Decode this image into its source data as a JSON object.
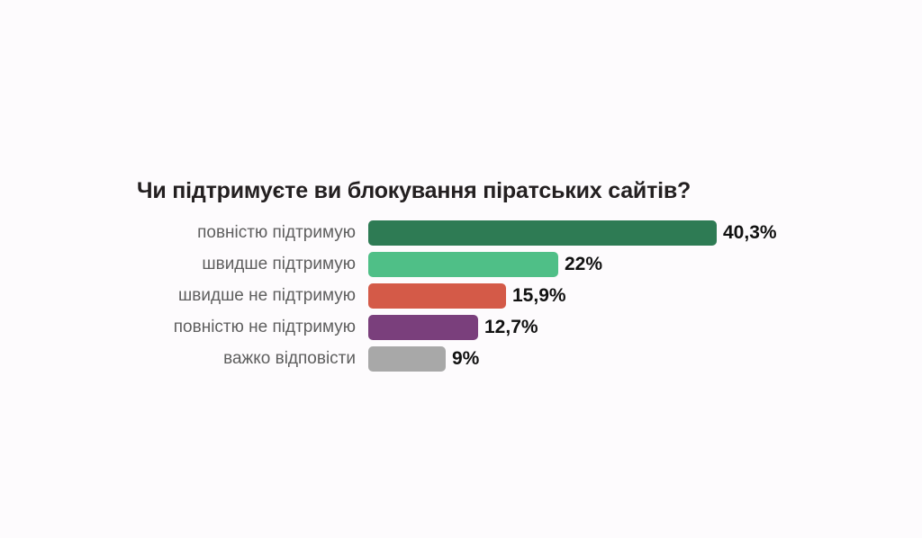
{
  "chart_data": {
    "type": "bar",
    "orientation": "horizontal",
    "title": "Чи підтримуєте ви блокування піратських сайтів?",
    "categories": [
      "повністю підтримую",
      "швидше підтримую",
      "швидше не підтримую",
      "повністю не підтримую",
      "важко відповісти"
    ],
    "values": [
      40.3,
      22,
      15.9,
      12.7,
      9
    ],
    "value_labels": [
      "40,3%",
      "22%",
      "15,9%",
      "12,7%",
      "9%"
    ],
    "colors": [
      "#2e7b54",
      "#4fbf87",
      "#d45a48",
      "#7a3f7c",
      "#a8a8a8"
    ],
    "xlim": [
      0,
      40.3
    ],
    "grid": false,
    "legend": "none"
  }
}
